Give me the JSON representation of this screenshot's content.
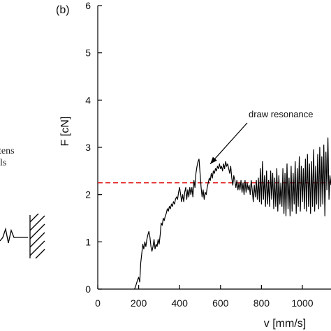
{
  "left_fragment": {
    "text_line1": "tens",
    "text_line2": "ls"
  },
  "chart_data": {
    "type": "line",
    "panel_label": "(b)",
    "xlabel": "v [mm/s]",
    "ylabel": "F [cN]",
    "xlim": [
      0,
      1140
    ],
    "ylim": [
      0,
      6
    ],
    "x_ticks": [
      0,
      200,
      400,
      600,
      800,
      1000
    ],
    "y_ticks": [
      0,
      1,
      2,
      3,
      4,
      5,
      6
    ],
    "reference_line": {
      "y": 2.25,
      "color": "#e02020",
      "style": "dashed"
    },
    "annotation": {
      "text": "draw resonance",
      "arrow_to": {
        "x": 550,
        "y": 2.65
      }
    },
    "series": [
      {
        "color": "#000000",
        "points": [
          [
            180,
            0.0
          ],
          [
            188,
            0.1
          ],
          [
            195,
            0.2
          ],
          [
            200,
            0.25
          ],
          [
            205,
            0.15
          ],
          [
            210,
            0.55
          ],
          [
            215,
            0.75
          ],
          [
            220,
            0.95
          ],
          [
            225,
            0.85
          ],
          [
            230,
            1.0
          ],
          [
            235,
            0.9
          ],
          [
            240,
            1.05
          ],
          [
            245,
            1.15
          ],
          [
            250,
            1.22
          ],
          [
            255,
            1.1
          ],
          [
            260,
            0.9
          ],
          [
            265,
            0.8
          ],
          [
            270,
            0.9
          ],
          [
            275,
            1.05
          ],
          [
            280,
            0.85
          ],
          [
            285,
            0.95
          ],
          [
            290,
            0.9
          ],
          [
            295,
            1.05
          ],
          [
            300,
            0.95
          ],
          [
            305,
            1.15
          ],
          [
            310,
            1.4
          ],
          [
            315,
            1.35
          ],
          [
            320,
            1.5
          ],
          [
            325,
            1.45
          ],
          [
            330,
            1.55
          ],
          [
            335,
            1.6
          ],
          [
            340,
            1.7
          ],
          [
            345,
            1.65
          ],
          [
            350,
            1.75
          ],
          [
            355,
            1.7
          ],
          [
            360,
            1.8
          ],
          [
            365,
            1.75
          ],
          [
            370,
            1.85
          ],
          [
            375,
            1.8
          ],
          [
            380,
            1.9
          ],
          [
            385,
            1.95
          ],
          [
            390,
            1.9
          ],
          [
            395,
            2.05
          ],
          [
            400,
            2.15
          ],
          [
            405,
            2.0
          ],
          [
            410,
            1.85
          ],
          [
            415,
            2.0
          ],
          [
            420,
            1.85
          ],
          [
            425,
            2.05
          ],
          [
            430,
            2.15
          ],
          [
            435,
            1.9
          ],
          [
            440,
            2.1
          ],
          [
            445,
            1.95
          ],
          [
            450,
            2.15
          ],
          [
            455,
            2.0
          ],
          [
            460,
            2.15
          ],
          [
            465,
            1.95
          ],
          [
            470,
            2.3
          ],
          [
            475,
            2.15
          ],
          [
            480,
            2.45
          ],
          [
            485,
            2.6
          ],
          [
            490,
            2.7
          ],
          [
            495,
            2.75
          ],
          [
            500,
            2.45
          ],
          [
            505,
            2.15
          ],
          [
            510,
            1.95
          ],
          [
            515,
            2.1
          ],
          [
            520,
            1.9
          ],
          [
            525,
            2.05
          ],
          [
            530,
            2.0
          ],
          [
            535,
            2.15
          ],
          [
            540,
            2.25
          ],
          [
            545,
            2.35
          ],
          [
            550,
            2.3
          ],
          [
            555,
            2.45
          ],
          [
            560,
            2.35
          ],
          [
            565,
            2.5
          ],
          [
            570,
            2.45
          ],
          [
            575,
            2.55
          ],
          [
            580,
            2.5
          ],
          [
            585,
            2.6
          ],
          [
            590,
            2.55
          ],
          [
            595,
            2.65
          ],
          [
            600,
            2.55
          ],
          [
            605,
            2.6
          ],
          [
            610,
            2.5
          ],
          [
            615,
            2.65
          ],
          [
            620,
            2.55
          ],
          [
            625,
            2.7
          ],
          [
            630,
            2.6
          ],
          [
            635,
            2.65
          ],
          [
            640,
            2.55
          ],
          [
            645,
            2.45
          ],
          [
            650,
            2.6
          ],
          [
            655,
            2.35
          ],
          [
            660,
            2.2
          ],
          [
            665,
            2.4
          ],
          [
            670,
            2.3
          ],
          [
            675,
            2.15
          ],
          [
            680,
            2.3
          ],
          [
            685,
            2.1
          ],
          [
            690,
            2.25
          ],
          [
            695,
            2.1
          ],
          [
            700,
            2.3
          ],
          [
            705,
            2.05
          ],
          [
            710,
            2.25
          ],
          [
            715,
            2.0
          ],
          [
            720,
            2.3
          ],
          [
            725,
            2.05
          ],
          [
            730,
            2.25
          ],
          [
            735,
            2.1
          ],
          [
            740,
            2.2
          ],
          [
            745,
            2.0
          ],
          [
            750,
            2.3
          ],
          [
            755,
            2.1
          ],
          [
            760,
            1.85
          ],
          [
            765,
            2.2
          ],
          [
            770,
            1.95
          ],
          [
            775,
            2.3
          ],
          [
            780,
            1.9
          ],
          [
            785,
            2.35
          ],
          [
            790,
            1.85
          ],
          [
            795,
            2.55
          ],
          [
            800,
            1.8
          ],
          [
            805,
            2.7
          ],
          [
            810,
            1.9
          ],
          [
            815,
            2.4
          ],
          [
            820,
            1.75
          ],
          [
            825,
            2.5
          ],
          [
            830,
            1.8
          ],
          [
            835,
            2.3
          ],
          [
            840,
            1.75
          ],
          [
            845,
            2.5
          ],
          [
            850,
            1.9
          ],
          [
            855,
            2.45
          ],
          [
            860,
            1.7
          ],
          [
            865,
            2.35
          ],
          [
            870,
            1.75
          ],
          [
            875,
            2.55
          ],
          [
            880,
            1.65
          ],
          [
            885,
            2.4
          ],
          [
            890,
            1.8
          ],
          [
            895,
            2.25
          ],
          [
            900,
            1.75
          ],
          [
            905,
            2.55
          ],
          [
            910,
            1.6
          ],
          [
            915,
            2.45
          ],
          [
            920,
            1.55
          ],
          [
            925,
            2.65
          ],
          [
            930,
            1.7
          ],
          [
            935,
            2.35
          ],
          [
            940,
            1.55
          ],
          [
            945,
            2.6
          ],
          [
            950,
            1.65
          ],
          [
            955,
            2.45
          ],
          [
            960,
            1.8
          ],
          [
            965,
            2.7
          ],
          [
            970,
            1.6
          ],
          [
            975,
            2.55
          ],
          [
            980,
            1.75
          ],
          [
            985,
            2.8
          ],
          [
            990,
            1.65
          ],
          [
            995,
            2.6
          ],
          [
            1000,
            1.85
          ],
          [
            1005,
            2.55
          ],
          [
            1010,
            1.7
          ],
          [
            1015,
            2.75
          ],
          [
            1020,
            1.65
          ],
          [
            1025,
            2.85
          ],
          [
            1030,
            1.75
          ],
          [
            1035,
            2.65
          ],
          [
            1040,
            1.6
          ],
          [
            1045,
            2.7
          ],
          [
            1050,
            1.75
          ],
          [
            1055,
            2.95
          ],
          [
            1060,
            1.65
          ],
          [
            1065,
            2.6
          ],
          [
            1070,
            1.8
          ],
          [
            1075,
            2.85
          ],
          [
            1080,
            1.7
          ],
          [
            1085,
            3.0
          ],
          [
            1090,
            1.75
          ],
          [
            1095,
            2.8
          ],
          [
            1100,
            1.8
          ],
          [
            1105,
            3.05
          ],
          [
            1110,
            1.55
          ],
          [
            1115,
            2.9
          ],
          [
            1120,
            2.1
          ],
          [
            1125,
            3.2
          ],
          [
            1130,
            1.9
          ],
          [
            1135,
            2.4
          ],
          [
            1140,
            2.2
          ]
        ]
      }
    ]
  }
}
